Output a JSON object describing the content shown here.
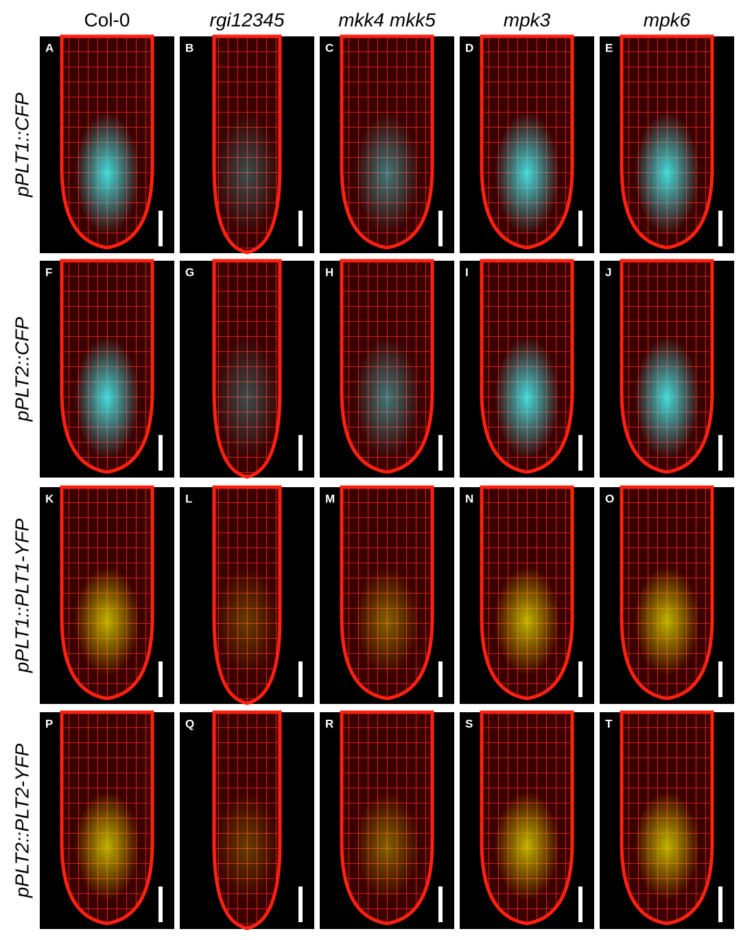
{
  "columns": [
    "Col-0",
    "rgi12345",
    "mkk4 mkk5",
    "mpk3",
    "mpk6"
  ],
  "rows": [
    "pPLT1::CFP",
    "pPLT2::CFP",
    "pPLT1::PLT1-YFP",
    "pPLT2::PLT2-YFP"
  ],
  "panels": [
    [
      "A",
      "B",
      "C",
      "D",
      "E"
    ],
    [
      "F",
      "G",
      "H",
      "I",
      "J"
    ],
    [
      "K",
      "L",
      "M",
      "N",
      "O"
    ],
    [
      "P",
      "Q",
      "R",
      "S",
      "T"
    ]
  ]
}
